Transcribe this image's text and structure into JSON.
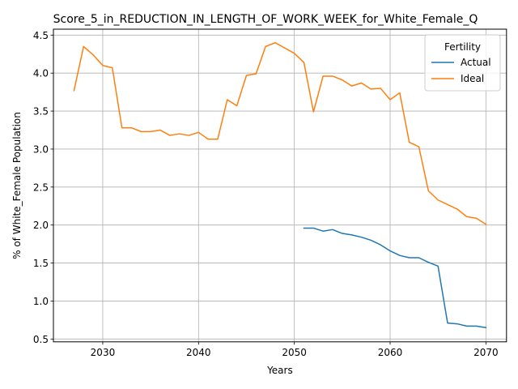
{
  "chart_data": {
    "type": "line",
    "title": "Score_5_in_REDUCTION_IN_LENGTH_OF_WORK_WEEK_for_White_Female_Q",
    "xlabel": "Years",
    "ylabel": "% of White_Female Population",
    "xlim": [
      2024.85,
      2072.15
    ],
    "ylim": [
      0.463,
      4.578
    ],
    "x_ticks": [
      2030,
      2040,
      2050,
      2060,
      2070
    ],
    "y_ticks": [
      0.5,
      1.0,
      1.5,
      2.0,
      2.5,
      3.0,
      3.5,
      4.0,
      4.5
    ],
    "x_tick_labels": [
      "2030",
      "2040",
      "2050",
      "2060",
      "2070"
    ],
    "y_tick_labels": [
      "0.5",
      "1.0",
      "1.5",
      "2.0",
      "2.5",
      "3.0",
      "3.5",
      "4.0",
      "4.5"
    ],
    "grid": true,
    "legend": {
      "title": "Fertility",
      "position": "top-right"
    },
    "series": [
      {
        "name": "Actual",
        "color": "#1f77b4",
        "x": [
          2051,
          2052,
          2053,
          2054,
          2055,
          2056,
          2057,
          2058,
          2059,
          2060,
          2061,
          2062,
          2063,
          2064,
          2065,
          2066,
          2067,
          2068,
          2069,
          2070
        ],
        "values": [
          1.96,
          1.96,
          1.92,
          1.94,
          1.89,
          1.87,
          1.84,
          1.8,
          1.74,
          1.66,
          1.6,
          1.57,
          1.57,
          1.51,
          1.46,
          0.71,
          0.7,
          0.67,
          0.67,
          0.65
        ]
      },
      {
        "name": "Ideal",
        "color": "#ff7f0e",
        "x": [
          2027,
          2028,
          2029,
          2030,
          2031,
          2032,
          2033,
          2034,
          2035,
          2036,
          2037,
          2038,
          2039,
          2040,
          2041,
          2042,
          2043,
          2044,
          2045,
          2046,
          2047,
          2048,
          2049,
          2050,
          2051,
          2052,
          2053,
          2054,
          2055,
          2056,
          2057,
          2058,
          2059,
          2060,
          2061,
          2062,
          2063,
          2064,
          2065,
          2066,
          2067,
          2068,
          2069,
          2070
        ],
        "values": [
          3.77,
          4.35,
          4.24,
          4.1,
          4.07,
          3.28,
          3.28,
          3.23,
          3.23,
          3.25,
          3.18,
          3.2,
          3.18,
          3.22,
          3.13,
          3.13,
          3.65,
          3.57,
          3.97,
          3.99,
          4.35,
          4.4,
          4.33,
          4.26,
          4.14,
          3.49,
          3.96,
          3.96,
          3.91,
          3.83,
          3.87,
          3.79,
          3.8,
          3.65,
          3.74,
          3.09,
          3.03,
          2.45,
          2.33,
          2.27,
          2.21,
          2.11,
          2.09,
          2.01
        ]
      }
    ]
  }
}
